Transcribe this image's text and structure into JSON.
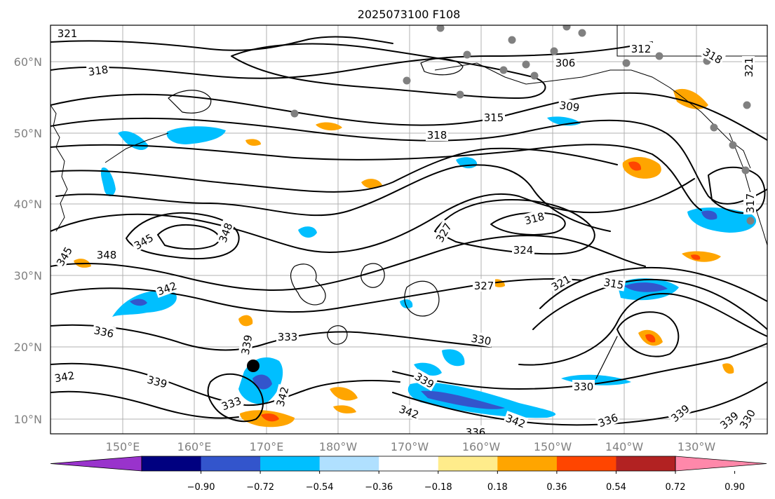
{
  "title": "2025073100 F108",
  "map": {
    "lat_labels": [
      "60°N",
      "50°N",
      "40°N",
      "30°N",
      "20°N",
      "10°N"
    ],
    "lon_labels": [
      "150°E",
      "160°E",
      "170°E",
      "180°W",
      "170°W",
      "160°W",
      "150°W",
      "140°W",
      "130°W"
    ],
    "contour_labels": [
      "321",
      "318",
      "306",
      "312",
      "318",
      "309",
      "315",
      "318",
      "321",
      "318",
      "327",
      "324",
      "327",
      "321",
      "315",
      "345",
      "348",
      "348",
      "345",
      "342",
      "336",
      "333",
      "339",
      "330",
      "339",
      "342",
      "339",
      "330",
      "333",
      "342",
      "342",
      "342",
      "336",
      "336",
      "339",
      "339",
      "330",
      "317"
    ],
    "colors": {
      "contour": "#000000",
      "grid": "#b0b0b0",
      "coast": "#000000",
      "marker": "#000000",
      "dots": "#808080"
    }
  },
  "colorbar": {
    "colors": [
      "#9933cc",
      "#000080",
      "#3355cc",
      "#00bfff",
      "#b0e0ff",
      "#ffffff",
      "#ffec8b",
      "#ffa500",
      "#ff4500",
      "#b22222",
      "#ff88aa"
    ],
    "tick_labels": [
      "−0.90",
      "−0.72",
      "−0.54",
      "−0.36",
      "−0.18",
      "0.18",
      "0.36",
      "0.54",
      "0.72",
      "0.90"
    ]
  }
}
